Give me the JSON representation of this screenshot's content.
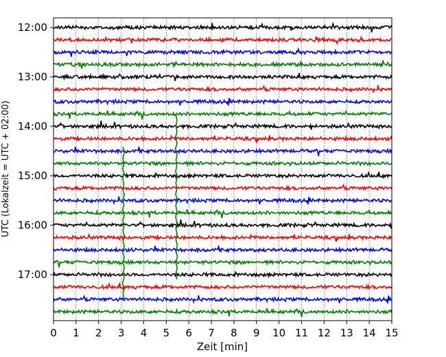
{
  "chart_data": {
    "type": "line",
    "chart_kind": "helicorder seismogram",
    "title": "",
    "xlabel": "Zeit  [min]",
    "ylabel": "UTC (Lokalzeit = UTC + 02:00)",
    "xlim": [
      0,
      15
    ],
    "x_ticks": [
      "0",
      "1",
      "2",
      "3",
      "4",
      "5",
      "6",
      "7",
      "8",
      "9",
      "10",
      "11",
      "12",
      "13",
      "14",
      "15"
    ],
    "y_tick_labels": [
      "12:00",
      "13:00",
      "14:00",
      "15:00",
      "16:00",
      "17:00"
    ],
    "trace_start_times": [
      "12:00",
      "12:15",
      "12:30",
      "12:45",
      "13:00",
      "13:15",
      "13:30",
      "13:45",
      "14:00",
      "14:15",
      "14:30",
      "14:45",
      "15:00",
      "15:15",
      "15:30",
      "15:45",
      "16:00",
      "16:15",
      "16:30",
      "16:45",
      "17:00",
      "17:15",
      "17:30",
      "17:45"
    ],
    "trace_colors": [
      "#000000",
      "#ff0000",
      "#0000ff",
      "#008000"
    ],
    "vertical_grid": "dotted at each minute",
    "events": [
      {
        "trace_start": "15:30",
        "time_min": 5.45,
        "color": "#008000",
        "description": "large spike spanning many traces"
      },
      {
        "trace_start": "15:45",
        "time_min": 3.1,
        "color": "#008000",
        "description": "large spike spanning many traces"
      }
    ]
  }
}
